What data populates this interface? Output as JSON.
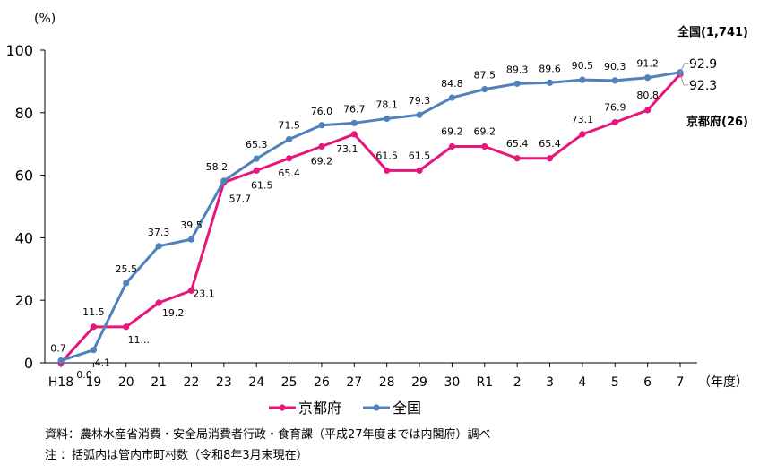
{
  "notes": {
    "source": "資料：農林水産省消費・安全局消費者行政・食育課（平成27年度までは内閣府）調べ",
    "footnote": "注 ：括弧内は管内市町村数（令和8年3月末現在）"
  },
  "chart_data": {
    "type": "line",
    "title": "",
    "ylabel": "(%)",
    "xlabel": "（年度）",
    "ylim": [
      0,
      100
    ],
    "yticks": [
      0,
      20,
      40,
      60,
      80,
      100
    ],
    "grid": false,
    "legend_position": "bottom-center",
    "categories": [
      "H18",
      "19",
      "20",
      "21",
      "22",
      "23",
      "24",
      "25",
      "26",
      "27",
      "28",
      "29",
      "30",
      "R1",
      "2",
      "3",
      "4",
      "5",
      "6",
      "7"
    ],
    "series": [
      {
        "name": "京都府",
        "color": "#e6177a",
        "end_label": "京都府(26)",
        "values": [
          0.0,
          11.5,
          11.5,
          19.2,
          23.1,
          57.7,
          61.5,
          65.4,
          69.2,
          73.1,
          61.5,
          61.5,
          69.2,
          69.2,
          65.4,
          65.4,
          73.1,
          76.9,
          80.8,
          92.3
        ],
        "data_labels": [
          "0.0",
          "",
          "11...",
          "19.2",
          "23.1",
          "57.7",
          "61.5",
          "65.4",
          "69.2",
          "73.1",
          "61.5",
          "61.5",
          "69.2",
          "69.2",
          "65.4",
          "65.4",
          "73.1",
          "76.9",
          "80.8",
          "92.3"
        ]
      },
      {
        "name": "全国",
        "color": "#4f81bd",
        "end_label": "全国(1,741)",
        "values": [
          0.7,
          4.1,
          25.5,
          37.3,
          39.5,
          58.2,
          65.3,
          71.5,
          76.0,
          76.7,
          78.1,
          79.3,
          84.8,
          87.5,
          89.3,
          89.6,
          90.5,
          90.3,
          91.2,
          92.9
        ],
        "data_labels": [
          "0.7",
          "4.1",
          "25.5",
          "37.3",
          "39.5",
          "58.2",
          "65.3",
          "71.5",
          "76.0",
          "76.7",
          "78.1",
          "79.3",
          "84.8",
          "87.5",
          "89.3",
          "89.6",
          "90.5",
          "90.3",
          "91.2",
          "92.9"
        ]
      }
    ],
    "extra_labels": [
      "11.5"
    ]
  }
}
